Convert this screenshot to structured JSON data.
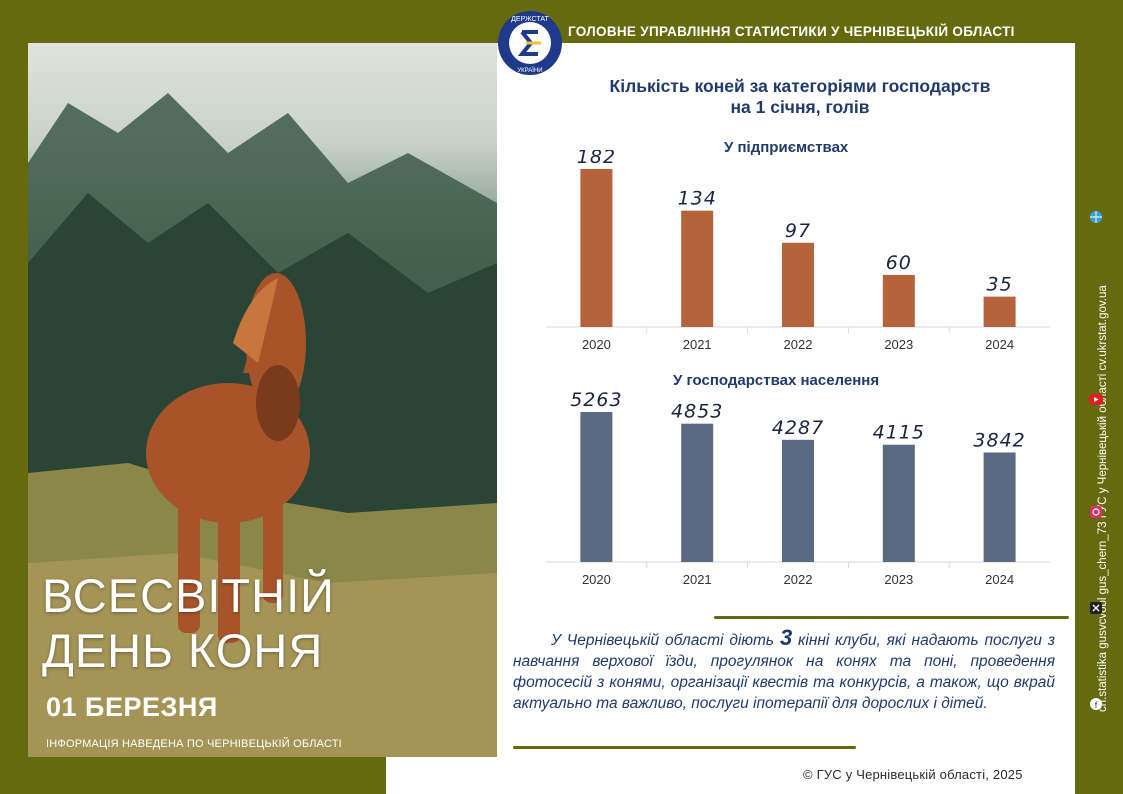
{
  "header": {
    "organization": "ГОЛОВНЕ УПРАВЛІННЯ СТАТИСТИКИ У ЧЕРНІВЕЦЬКІЙ ОБЛАСТІ",
    "logo_text_top": "ДЕРЖСТАТ",
    "logo_text_bottom": "УКРАЇНИ"
  },
  "poster": {
    "title_line1": "ВСЕСВІТНІЙ",
    "title_line2": "ДЕНЬ КОНЯ",
    "date": "01 БЕРЕЗНЯ",
    "info": "ІНФОРМАЦІЯ НАВЕДЕНА ПО ЧЕРНІВЕЦЬКІЙ ОБЛАСТІ"
  },
  "chart_title_line1": "Кількість коней за категоріями господарств",
  "chart_title_line2": "на 1 січня, голів",
  "chart_data": [
    {
      "type": "bar",
      "title": "У підприємствах",
      "categories": [
        "2020",
        "2021",
        "2022",
        "2023",
        "2024"
      ],
      "values": [
        182,
        134,
        97,
        60,
        35
      ],
      "color": "#b5633a",
      "ylim": [
        0,
        182
      ]
    },
    {
      "type": "bar",
      "title": "У господарствах населення",
      "categories": [
        "2020",
        "2021",
        "2022",
        "2023",
        "2024"
      ],
      "values": [
        5263,
        4853,
        4287,
        4115,
        3842
      ],
      "color": "#5a6a82",
      "ylim": [
        0,
        5263
      ]
    }
  ],
  "description": {
    "before": "У Чернівецькій області діють ",
    "number": "3",
    "after": " кінні клуби, які надають послуги з навчання верхової їзди, прогулянок на конях та поні, проведення фотосесій з конями, організації квестів та конкурсів, а також, що вкрай актуально та важливо, послуги іпотерапії для дорослих і дітей."
  },
  "sidebar": {
    "text": "ch.statistika   gusvcvobl   gus_chern_73   ГУС у Чернівецькій області   cv.ukrstat.gov.ua",
    "icons": [
      "facebook-icon",
      "x-icon",
      "instagram-icon",
      "youtube-icon",
      "globe-icon"
    ]
  },
  "footer": {
    "copyright": "© ГУС у Чернівецькій області, 2025"
  },
  "colors": {
    "olive": "#666a0e",
    "navy": "#1f3a6e",
    "bar_enterprises": "#b5633a",
    "bar_households": "#5a6a82"
  }
}
